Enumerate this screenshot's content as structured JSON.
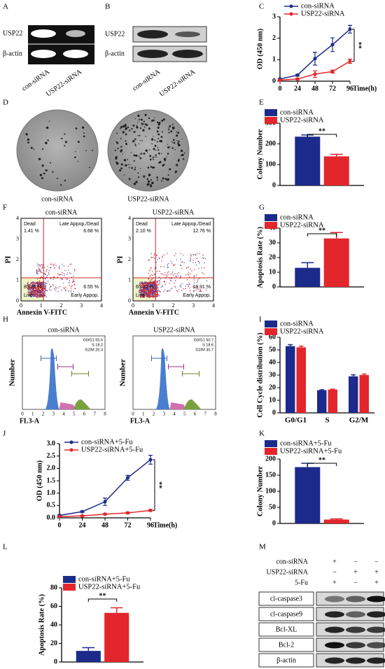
{
  "panel_labels": [
    "A",
    "B",
    "C",
    "D",
    "E",
    "F",
    "G",
    "H",
    "I",
    "J",
    "K",
    "L",
    "M"
  ],
  "gel_A": {
    "rows": [
      "USP22",
      "β-actin"
    ],
    "lanes": [
      "con-siRNA",
      "USP22-siRNA"
    ]
  },
  "blot_B": {
    "rows": [
      "USP22",
      "β-actin"
    ],
    "lanes": [
      "con-siRNA",
      "USP22-siRNA"
    ]
  },
  "plates_D": {
    "labels": [
      "con-siRNA",
      "USP22-siRNA"
    ]
  },
  "flow_F": {
    "plots": [
      {
        "title": "con-siRNA",
        "ylabel": "PI",
        "xlabel": "Annexin V-FITC",
        "xticks": [
          "0",
          "1",
          "2",
          "3",
          "4"
        ],
        "yticks": [
          "0",
          "1",
          "2",
          "3",
          "4"
        ],
        "quadrants": [
          "Dead",
          "1.41 %",
          "Late Appop./Dead",
          "6.68 %",
          "85.35 %",
          "Live",
          "6.55 %",
          "Early Appop."
        ]
      },
      {
        "title": "USP22-siRNA",
        "ylabel": "PI",
        "xlabel": "Annexin V-FITC",
        "xticks": [
          "0",
          "1",
          "2",
          "3",
          "4"
        ],
        "yticks": [
          "0",
          "1",
          "2",
          "3",
          "4"
        ],
        "quadrants": [
          "Dead",
          "2.10 %",
          "Late Appop./Dead",
          "12.76 %",
          "65.22 %",
          "Live",
          "19.91 %",
          "Early Appop."
        ]
      }
    ]
  },
  "hist_H": {
    "plots": [
      {
        "title": "con-siRNA",
        "ylabel": "Number",
        "xlabel": "FL3-A",
        "xticks": [
          "0",
          "1",
          "2",
          "3",
          "4",
          "5",
          "6",
          "7",
          "8"
        ],
        "stats": [
          "G0/G1 55.6",
          "S 18.2",
          "G2/M 26.3"
        ]
      },
      {
        "title": "USP22-siRNA",
        "ylabel": "Number",
        "xlabel": "FL3-A",
        "xticks": [
          "0",
          "1",
          "2",
          "3",
          "4",
          "5",
          "6",
          "7",
          "8"
        ],
        "stats": [
          "G0/G1 50.7",
          "S 18.6",
          "G2/M 30.7"
        ]
      }
    ]
  },
  "blot_M": {
    "conditions": [
      {
        "name": "con-siRNA",
        "signs": [
          "+",
          "−",
          "−"
        ]
      },
      {
        "name": "USP22-siRNA",
        "signs": [
          "−",
          "+",
          "+"
        ]
      },
      {
        "name": "5-Fu",
        "signs": [
          "+",
          "−",
          "+"
        ]
      }
    ],
    "rows": [
      "cl-caspase3",
      "cl-caspase9",
      "Bcl-XL",
      "Bcl-2",
      "β-actin"
    ]
  },
  "chart_data": [
    {
      "type": "line",
      "ylabel": "OD (450 nm)",
      "xlabel": "Time(h)",
      "x": [
        0,
        24,
        48,
        72,
        96
      ],
      "xlim": [
        0,
        96
      ],
      "xticks": [
        0,
        24,
        48,
        72,
        96
      ],
      "ylim": [
        0,
        3
      ],
      "yticks": [
        0,
        1,
        2,
        3
      ],
      "series": [
        {
          "name": "con-siRNA",
          "color": "#1c2a8c",
          "values": [
            0.1,
            0.28,
            1.05,
            1.7,
            2.42
          ],
          "errors": [
            0.03,
            0.04,
            0.3,
            0.32,
            0.18
          ]
        },
        {
          "name": "USP22-siRNA",
          "color": "#e3262b",
          "values": [
            0.05,
            0.1,
            0.33,
            0.45,
            0.93
          ],
          "errors": [
            0.02,
            0.03,
            0.15,
            0.07,
            0.1
          ]
        }
      ],
      "annotations": [
        "**"
      ]
    },
    {
      "type": "bar",
      "ylabel": "Colony Number",
      "ylim": [
        0,
        300
      ],
      "yticks": [
        0,
        100,
        200,
        300
      ],
      "series": [
        {
          "name": "con-siRNA",
          "color": "#1c2a8c",
          "values": [
            235
          ],
          "errors": [
            8
          ]
        },
        {
          "name": "USP22-siRNA",
          "color": "#e3262b",
          "values": [
            140
          ],
          "errors": [
            10
          ]
        }
      ],
      "annotations": [
        "**"
      ]
    },
    {
      "type": "bar",
      "ylabel": "Apoptosis Rate (%)",
      "ylim": [
        0,
        40
      ],
      "yticks": [
        0,
        10,
        20,
        30,
        40
      ],
      "series": [
        {
          "name": "con-siRNA",
          "color": "#1c2a8c",
          "values": [
            13
          ],
          "errors": [
            3.5
          ]
        },
        {
          "name": "USP22-siRNA",
          "color": "#e3262b",
          "values": [
            33
          ],
          "errors": [
            4
          ]
        }
      ],
      "annotations": [
        "**"
      ]
    },
    {
      "type": "bar",
      "ylabel": "Cell Cycle distribution (%)",
      "categories": [
        "G0/G1",
        "S",
        "G2/M"
      ],
      "ylim": [
        0,
        60
      ],
      "yticks": [
        0,
        10,
        20,
        30,
        40,
        50,
        60
      ],
      "series": [
        {
          "name": "con-siRNA",
          "color": "#1c2a8c",
          "values": [
            53,
            18,
            29
          ],
          "errors": [
            1.2,
            0.3,
            1.2
          ]
        },
        {
          "name": "USP22-siRNA",
          "color": "#e3262b",
          "values": [
            52,
            18.5,
            30
          ],
          "errors": [
            1,
            0.3,
            0.8
          ]
        }
      ]
    },
    {
      "type": "line",
      "ylabel": "OD (450 nm)",
      "xlabel": "Time(h)",
      "x": [
        0,
        24,
        48,
        72,
        96
      ],
      "xlim": [
        0,
        96
      ],
      "xticks": [
        0,
        24,
        48,
        72,
        96
      ],
      "ylim": [
        0,
        3
      ],
      "yticks": [
        {
          "value": 0,
          "label": "0.0"
        },
        0.5,
        {
          "value": 1,
          "label": "1.0"
        },
        1.5,
        {
          "value": 2,
          "label": "2.0"
        },
        2.5,
        {
          "value": 3,
          "label": "3.0"
        }
      ],
      "series": [
        {
          "name": "con-siRNA+5-Fu",
          "color": "#1c2a8c",
          "values": [
            0.1,
            0.25,
            0.65,
            1.62,
            2.35
          ],
          "errors": [
            0.02,
            0.03,
            0.15,
            0.1,
            0.18
          ]
        },
        {
          "name": "USP22-siRNA+5-Fu",
          "color": "#e3262b",
          "values": [
            0.05,
            0.08,
            0.15,
            0.2,
            0.3
          ],
          "errors": [
            0.01,
            0.02,
            0.02,
            0.03,
            0.04
          ]
        }
      ],
      "annotations": [
        "**"
      ]
    },
    {
      "type": "bar",
      "ylabel": "Colony Number",
      "ylim": [
        0,
        200
      ],
      "yticks": [
        0,
        50,
        100,
        150,
        200
      ],
      "series": [
        {
          "name": "con-siRNA+5-Fu",
          "color": "#1c2a8c",
          "values": [
            175
          ],
          "errors": [
            12
          ]
        },
        {
          "name": "USP22-siRNA+5-Fu",
          "color": "#e3262b",
          "values": [
            12
          ],
          "errors": [
            2
          ]
        }
      ],
      "annotations": [
        "**"
      ]
    },
    {
      "type": "bar",
      "ylabel": "Apoptosis Rate (%)",
      "ylim": [
        0,
        80
      ],
      "yticks": [
        0,
        20,
        40,
        60,
        80
      ],
      "series": [
        {
          "name": "con-siRNA+5-Fu",
          "color": "#1c2a8c",
          "values": [
            12
          ],
          "errors": [
            3.5
          ]
        },
        {
          "name": "USP22-siRNA+5-Fu",
          "color": "#e3262b",
          "values": [
            53
          ],
          "errors": [
            5.5
          ]
        }
      ],
      "annotations": [
        "**"
      ]
    }
  ]
}
